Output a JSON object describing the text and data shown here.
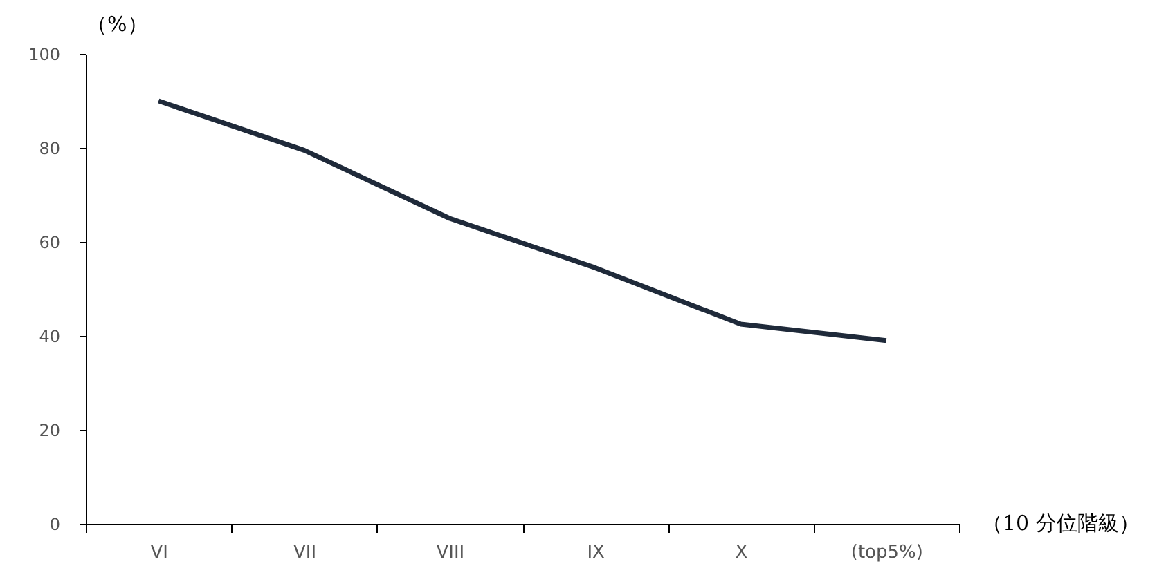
{
  "chart_data": {
    "type": "line",
    "xlabel": "（10 分位階級）",
    "ylabel": "（%）",
    "categories": [
      "VI",
      "VII",
      "VIII",
      "IX",
      "X",
      "(top5%)"
    ],
    "series": [
      {
        "color": "#1f2a3a",
        "values": [
          90,
          79.5,
          65,
          54.5,
          42.5,
          39
        ]
      }
    ],
    "ylim": [
      0,
      100
    ],
    "yticks": [
      0,
      20,
      40,
      60,
      80,
      100
    ],
    "grid": false,
    "legend": false,
    "marker": "none",
    "line_style": "solid"
  }
}
